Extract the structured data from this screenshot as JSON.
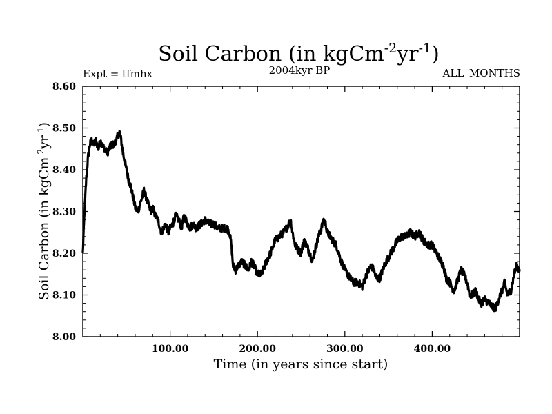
{
  "header": {
    "title": "Soil Carbon (in kgCm",
    "title_exp1": "-2",
    "title_mid": "yr",
    "title_exp2": "-1",
    "title_end": ")",
    "expt": "Expt = tfmhx",
    "period": "2004kyr BP",
    "months": "ALL_MONTHS"
  },
  "axes": {
    "xlabel": "Time (in years since start)",
    "ylabel": "Soil Carbon (in kgCm",
    "ylabel_exp1": "-2",
    "ylabel_mid": "yr",
    "ylabel_exp2": "-1",
    "ylabel_end": ")"
  },
  "chart_data": {
    "type": "line",
    "title": "Soil Carbon (in kgCm-2yr-1)",
    "subtitle": "2004kyr BP",
    "xlabel": "Time (in years since start)",
    "ylabel": "Soil Carbon (in kgCm-2yr-1)",
    "xlim": [
      0,
      500
    ],
    "ylim": [
      8.0,
      8.6
    ],
    "x_ticks": [
      100,
      200,
      300,
      400
    ],
    "x_tick_labels": [
      "100.00",
      "200.00",
      "300.00",
      "400.00"
    ],
    "y_ticks": [
      8.0,
      8.1,
      8.2,
      8.3,
      8.4,
      8.5,
      8.6
    ],
    "y_tick_labels": [
      "8.00",
      "8.10",
      "8.20",
      "8.30",
      "8.40",
      "8.50",
      "8.60"
    ],
    "grid": false,
    "series": [
      {
        "name": "Soil Carbon",
        "x": [
          0,
          2,
          4,
          6,
          8,
          10,
          12,
          15,
          18,
          20,
          22,
          25,
          28,
          30,
          33,
          36,
          38,
          40,
          42,
          44,
          46,
          48,
          50,
          52,
          55,
          58,
          60,
          63,
          66,
          70,
          73,
          76,
          78,
          80,
          83,
          86,
          90,
          92,
          95,
          98,
          100,
          103,
          106,
          110,
          113,
          116,
          120,
          123,
          126,
          130,
          135,
          140,
          145,
          150,
          155,
          160,
          165,
          168,
          170,
          172,
          175,
          178,
          182,
          186,
          190,
          193,
          196,
          200,
          205,
          210,
          215,
          220,
          225,
          230,
          233,
          236,
          238,
          240,
          243,
          246,
          250,
          253,
          256,
          260,
          263,
          266,
          270,
          273,
          276,
          278,
          280,
          283,
          286,
          290,
          293,
          296,
          300,
          303,
          306,
          310,
          315,
          320,
          325,
          330,
          333,
          336,
          340,
          345,
          350,
          355,
          360,
          365,
          370,
          375,
          380,
          385,
          390,
          395,
          400,
          405,
          410,
          413,
          416,
          420,
          425,
          430,
          433,
          436,
          440,
          443,
          446,
          450,
          453,
          456,
          460,
          465,
          470,
          473,
          476,
          480,
          483,
          486,
          490,
          493,
          496,
          500
        ],
        "values": [
          8.2,
          8.3,
          8.38,
          8.43,
          8.46,
          8.47,
          8.46,
          8.47,
          8.45,
          8.47,
          8.46,
          8.45,
          8.44,
          8.45,
          8.46,
          8.46,
          8.47,
          8.48,
          8.49,
          8.47,
          8.44,
          8.42,
          8.4,
          8.38,
          8.36,
          8.33,
          8.31,
          8.3,
          8.32,
          8.35,
          8.33,
          8.31,
          8.3,
          8.31,
          8.29,
          8.28,
          8.25,
          8.26,
          8.27,
          8.25,
          8.26,
          8.27,
          8.29,
          8.28,
          8.26,
          8.29,
          8.27,
          8.26,
          8.27,
          8.26,
          8.27,
          8.28,
          8.27,
          8.27,
          8.26,
          8.26,
          8.26,
          8.25,
          8.22,
          8.17,
          8.16,
          8.17,
          8.18,
          8.17,
          8.16,
          8.18,
          8.17,
          8.15,
          8.15,
          8.18,
          8.2,
          8.23,
          8.24,
          8.25,
          8.26,
          8.27,
          8.28,
          8.25,
          8.22,
          8.21,
          8.2,
          8.23,
          8.22,
          8.2,
          8.18,
          8.21,
          8.24,
          8.26,
          8.28,
          8.27,
          8.25,
          8.24,
          8.23,
          8.22,
          8.2,
          8.18,
          8.16,
          8.15,
          8.14,
          8.13,
          8.13,
          8.12,
          8.15,
          8.17,
          8.16,
          8.14,
          8.14,
          8.17,
          8.19,
          8.21,
          8.23,
          8.24,
          8.24,
          8.25,
          8.24,
          8.25,
          8.23,
          8.22,
          8.22,
          8.2,
          8.18,
          8.17,
          8.14,
          8.13,
          8.11,
          8.14,
          8.16,
          8.15,
          8.13,
          8.1,
          8.1,
          8.11,
          8.09,
          8.08,
          8.09,
          8.08,
          8.07,
          8.07,
          8.09,
          8.11,
          8.13,
          8.1,
          8.11,
          8.14,
          8.17,
          8.16
        ]
      }
    ]
  }
}
